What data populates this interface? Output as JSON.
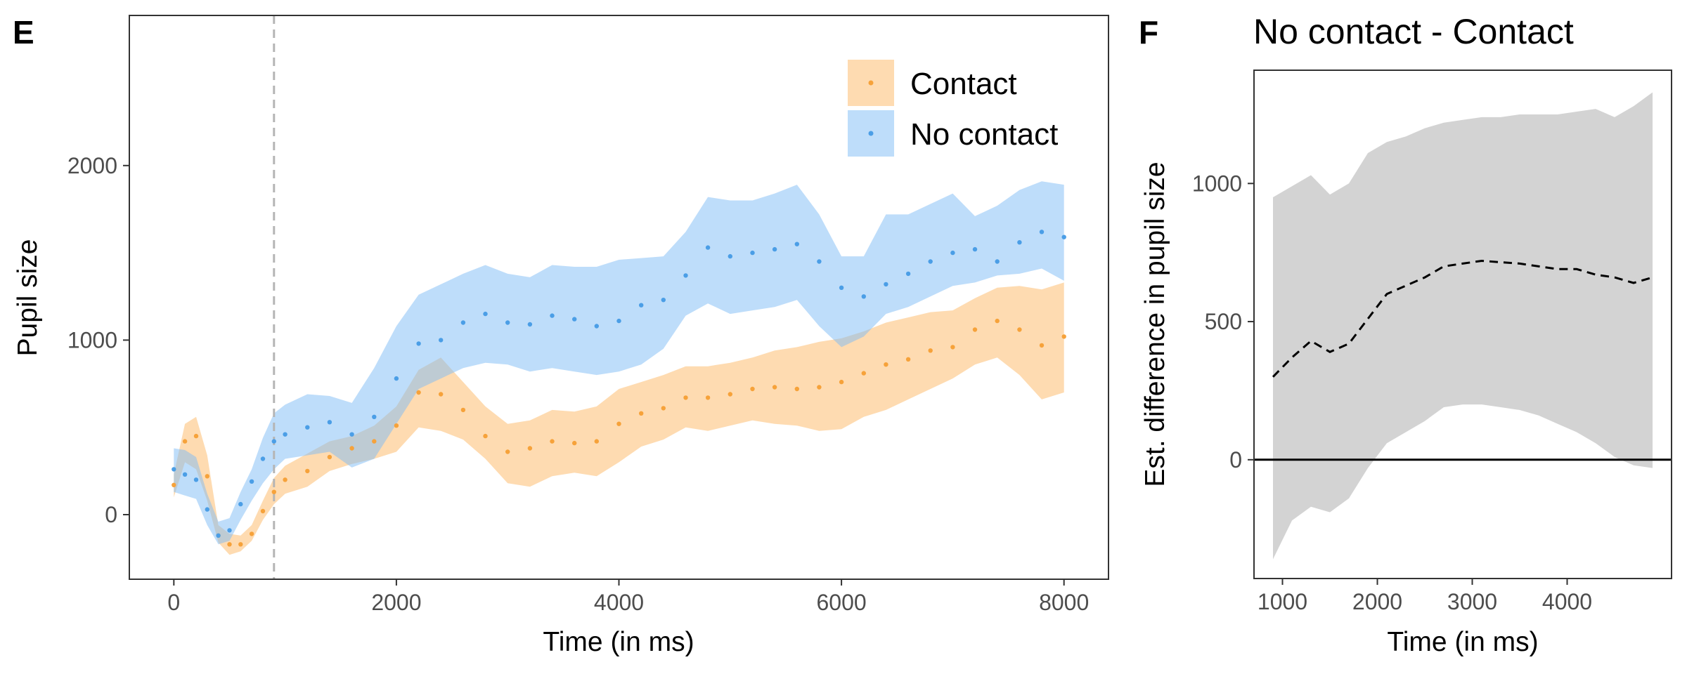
{
  "panels": {
    "E": {
      "letter": "E",
      "title": "",
      "xlabel": "Time (in ms)",
      "ylabel": "Pupil size",
      "xticks": [
        "0",
        "2000",
        "4000",
        "6000",
        "8000"
      ],
      "yticks": [
        "0",
        "1000",
        "2000"
      ],
      "legend": {
        "placement": "top-right",
        "items": [
          {
            "label": "Contact",
            "color": "#fdb863"
          },
          {
            "label": "No contact",
            "color": "#7dbbf5"
          }
        ]
      }
    },
    "F": {
      "letter": "F",
      "title": "No contact - Contact",
      "xlabel": "Time (in ms)",
      "ylabel": "Est. difference in pupil size",
      "xticks": [
        "1000",
        "2000",
        "3000",
        "4000"
      ],
      "yticks": [
        "0",
        "500",
        "1000"
      ]
    }
  },
  "colors": {
    "contact_band": "#fdb863",
    "contact_points": "#f6a23a",
    "no_contact_band": "#7dbbf5",
    "no_contact_points": "#4b9ee6",
    "diff_band": "#d3d3d3",
    "reference_line": "#b5b5b5"
  },
  "chart_data": [
    {
      "panel": "E",
      "type": "line",
      "xlabel": "Time (in ms)",
      "ylabel": "Pupil size",
      "xlim": [
        -400,
        8400
      ],
      "ylim": [
        -370,
        2860
      ],
      "grid": false,
      "legend_position": "top-right",
      "vline": {
        "x": 900,
        "style": "dashed"
      },
      "series": [
        {
          "name": "Contact",
          "style": "points with ribbon",
          "x": [
            0,
            100,
            200,
            300,
            400,
            500,
            600,
            700,
            800,
            900,
            1000,
            1200,
            1400,
            1600,
            1800,
            2000,
            2200,
            2400,
            2600,
            2800,
            3000,
            3200,
            3400,
            3600,
            3800,
            4000,
            4200,
            4400,
            4600,
            4800,
            5000,
            5200,
            5400,
            5600,
            5800,
            6000,
            6200,
            6400,
            6600,
            6800,
            7000,
            7200,
            7400,
            7600,
            7800,
            8000
          ],
          "y": [
            170,
            420,
            450,
            220,
            -120,
            -170,
            -170,
            -110,
            20,
            130,
            200,
            250,
            330,
            380,
            420,
            510,
            700,
            690,
            600,
            450,
            360,
            380,
            420,
            410,
            420,
            520,
            580,
            610,
            670,
            670,
            690,
            720,
            730,
            720,
            730,
            760,
            810,
            860,
            890,
            940,
            960,
            1060,
            1110,
            1060,
            970,
            1020
          ],
          "lower": [
            100,
            300,
            260,
            80,
            -160,
            -230,
            -210,
            -150,
            -30,
            60,
            120,
            160,
            250,
            290,
            320,
            360,
            500,
            480,
            430,
            320,
            180,
            160,
            220,
            240,
            220,
            300,
            390,
            430,
            500,
            480,
            510,
            540,
            520,
            510,
            480,
            490,
            560,
            600,
            660,
            720,
            780,
            860,
            900,
            800,
            660,
            700
          ],
          "upper": [
            230,
            520,
            560,
            340,
            -60,
            -110,
            -120,
            -60,
            80,
            210,
            280,
            350,
            420,
            450,
            510,
            620,
            830,
            900,
            760,
            620,
            520,
            540,
            600,
            590,
            620,
            720,
            760,
            800,
            850,
            850,
            870,
            900,
            940,
            960,
            990,
            1010,
            1050,
            1100,
            1130,
            1160,
            1170,
            1240,
            1300,
            1310,
            1290,
            1330
          ]
        },
        {
          "name": "No contact",
          "style": "points with ribbon",
          "x": [
            0,
            100,
            200,
            300,
            400,
            500,
            600,
            700,
            800,
            900,
            1000,
            1200,
            1400,
            1600,
            1800,
            2000,
            2200,
            2400,
            2600,
            2800,
            3000,
            3200,
            3400,
            3600,
            3800,
            4000,
            4200,
            4400,
            4600,
            4800,
            5000,
            5200,
            5400,
            5600,
            5800,
            6000,
            6200,
            6400,
            6600,
            6800,
            7000,
            7200,
            7400,
            7600,
            7800,
            8000
          ],
          "y": [
            260,
            230,
            200,
            30,
            -120,
            -90,
            60,
            190,
            320,
            420,
            460,
            500,
            530,
            460,
            560,
            780,
            980,
            1000,
            1100,
            1150,
            1100,
            1090,
            1140,
            1120,
            1080,
            1110,
            1200,
            1230,
            1370,
            1530,
            1480,
            1500,
            1520,
            1550,
            1450,
            1300,
            1250,
            1320,
            1380,
            1450,
            1500,
            1520,
            1450,
            1560,
            1620,
            1590
          ],
          "lower": [
            130,
            110,
            90,
            -60,
            -170,
            -150,
            -30,
            80,
            180,
            260,
            320,
            340,
            360,
            270,
            320,
            520,
            720,
            780,
            840,
            870,
            860,
            820,
            840,
            820,
            800,
            820,
            860,
            950,
            1140,
            1210,
            1150,
            1170,
            1190,
            1230,
            1080,
            960,
            1020,
            1150,
            1190,
            1250,
            1310,
            1330,
            1370,
            1380,
            1410,
            1340
          ],
          "upper": [
            380,
            370,
            330,
            120,
            -40,
            -20,
            130,
            260,
            440,
            580,
            630,
            690,
            680,
            640,
            840,
            1080,
            1260,
            1320,
            1380,
            1430,
            1380,
            1360,
            1430,
            1420,
            1420,
            1460,
            1470,
            1480,
            1620,
            1820,
            1800,
            1800,
            1840,
            1890,
            1720,
            1480,
            1480,
            1720,
            1720,
            1780,
            1840,
            1710,
            1770,
            1860,
            1910,
            1890
          ]
        }
      ]
    },
    {
      "panel": "F",
      "type": "line",
      "title": "No contact - Contact",
      "xlabel": "Time (in ms)",
      "ylabel": "Est. difference in pupil size",
      "xlim": [
        700,
        5100
      ],
      "ylim": [
        -430,
        1410
      ],
      "grid": false,
      "hline": {
        "y": 0,
        "style": "solid"
      },
      "series": [
        {
          "name": "",
          "style": "dashed line with ribbon",
          "x": [
            900,
            1100,
            1300,
            1500,
            1700,
            1900,
            2100,
            2300,
            2500,
            2700,
            2900,
            3100,
            3300,
            3500,
            3700,
            3900,
            4100,
            4300,
            4500,
            4700,
            4900
          ],
          "y": [
            300,
            370,
            430,
            390,
            420,
            510,
            600,
            630,
            660,
            700,
            710,
            720,
            715,
            710,
            700,
            690,
            690,
            670,
            660,
            640,
            660
          ],
          "lower": [
            -360,
            -220,
            -170,
            -190,
            -140,
            -30,
            60,
            100,
            140,
            190,
            200,
            200,
            190,
            180,
            160,
            130,
            100,
            60,
            10,
            -20,
            -30
          ],
          "upper": [
            950,
            990,
            1030,
            960,
            1000,
            1110,
            1150,
            1170,
            1200,
            1220,
            1230,
            1240,
            1240,
            1250,
            1250,
            1250,
            1260,
            1270,
            1240,
            1280,
            1330
          ]
        }
      ]
    }
  ]
}
